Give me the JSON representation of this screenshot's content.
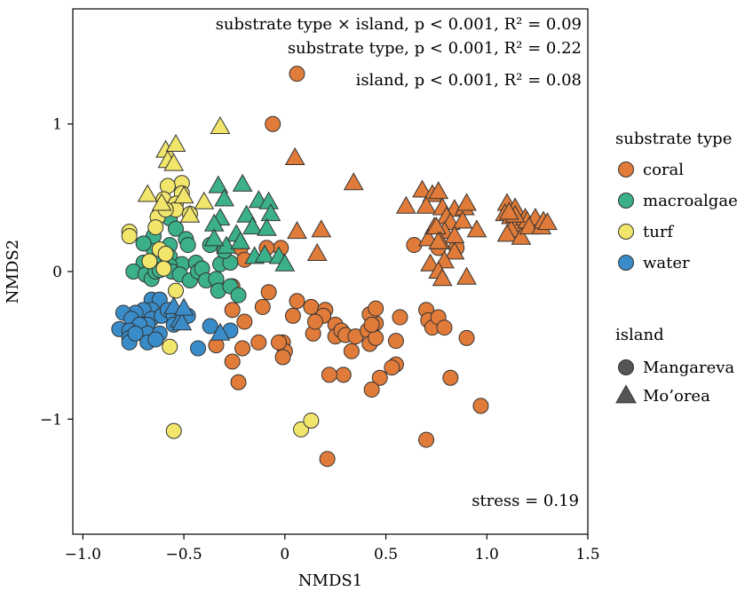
{
  "chart_data": {
    "type": "scatter",
    "title": "",
    "xlabel": "NMDS1",
    "ylabel": "NMDS2",
    "xlim": [
      -1.05,
      1.5
    ],
    "ylim": [
      -1.78,
      1.78
    ],
    "x_ticks": [
      -1.0,
      -0.5,
      0,
      0.5,
      1.0,
      1.5
    ],
    "x_tick_labels": [
      "−1.0",
      "−0.5",
      "0",
      "0.5",
      "1.0",
      "1.5"
    ],
    "y_ticks": [
      1,
      0,
      -1
    ],
    "y_tick_labels": [
      "1",
      "0",
      "−1"
    ],
    "grid": false,
    "annotations": {
      "interaction": "substrate type × island, p < 0.001, R² = 0.09",
      "substrate": "substrate type, p < 0.001, R² = 0.22",
      "island": "island, p < 0.001, R² = 0.08",
      "stress": "stress = 0.19"
    },
    "legend": {
      "placement": "right",
      "substrate_title": "substrate type",
      "island_title": "island",
      "substrate": [
        {
          "label": "coral",
          "color": "#E07B39"
        },
        {
          "label": "macroalgae",
          "color": "#3BB08A"
        },
        {
          "label": "turf",
          "color": "#F2E56B"
        },
        {
          "label": "water",
          "color": "#3A8CC8"
        }
      ],
      "island": [
        {
          "label": "Mangareva",
          "shape": "circle"
        },
        {
          "label": "Mo’orea",
          "shape": "triangle"
        }
      ]
    },
    "series": [
      {
        "substrate": "coral",
        "island": "Mangareva",
        "points": [
          [
            0.06,
            1.34
          ],
          [
            -0.06,
            1.0
          ],
          [
            0.64,
            0.18
          ],
          [
            0.76,
            0.16
          ],
          [
            0.85,
            0.16
          ],
          [
            -0.02,
            0.16
          ],
          [
            -0.09,
            0.16
          ],
          [
            -0.22,
            0.16
          ],
          [
            -0.2,
            0.08
          ],
          [
            -0.26,
            -0.1
          ],
          [
            -0.26,
            -0.26
          ],
          [
            -0.2,
            -0.34
          ],
          [
            -0.11,
            -0.24
          ],
          [
            -0.08,
            -0.14
          ],
          [
            0.06,
            -0.2
          ],
          [
            0.13,
            -0.24
          ],
          [
            0.2,
            -0.26
          ],
          [
            0.19,
            -0.3
          ],
          [
            0.25,
            -0.36
          ],
          [
            0.04,
            -0.3
          ],
          [
            0.14,
            -0.42
          ],
          [
            -0.01,
            -0.48
          ],
          [
            0.0,
            -0.54
          ],
          [
            -0.01,
            -0.58
          ],
          [
            -0.03,
            -0.48
          ],
          [
            -0.13,
            -0.48
          ],
          [
            -0.21,
            -0.52
          ],
          [
            -0.26,
            -0.61
          ],
          [
            -0.34,
            -0.5
          ],
          [
            -0.23,
            -0.75
          ],
          [
            0.25,
            -0.44
          ],
          [
            0.28,
            -0.4
          ],
          [
            0.3,
            -0.43
          ],
          [
            0.35,
            -0.44
          ],
          [
            0.33,
            -0.54
          ],
          [
            0.41,
            -0.4
          ],
          [
            0.42,
            -0.49
          ],
          [
            0.45,
            -0.45
          ],
          [
            0.45,
            -0.35
          ],
          [
            0.42,
            -0.29
          ],
          [
            0.43,
            -0.36
          ],
          [
            0.45,
            -0.25
          ],
          [
            0.57,
            -0.31
          ],
          [
            0.55,
            -0.47
          ],
          [
            0.55,
            -0.63
          ],
          [
            0.53,
            -0.65
          ],
          [
            0.47,
            -0.72
          ],
          [
            0.43,
            -0.8
          ],
          [
            0.29,
            -0.7
          ],
          [
            0.22,
            -0.7
          ],
          [
            0.15,
            -0.34
          ],
          [
            0.7,
            -0.26
          ],
          [
            0.71,
            -0.33
          ],
          [
            0.73,
            -0.38
          ],
          [
            0.76,
            -0.31
          ],
          [
            0.79,
            -0.38
          ],
          [
            0.9,
            -0.45
          ],
          [
            0.82,
            -0.72
          ],
          [
            0.97,
            -0.91
          ],
          [
            0.7,
            -1.14
          ],
          [
            0.21,
            -1.27
          ]
        ]
      },
      {
        "substrate": "coral",
        "island": "Mo'orea",
        "points": [
          [
            0.05,
            0.77
          ],
          [
            0.34,
            0.6
          ],
          [
            0.18,
            0.28
          ],
          [
            0.06,
            0.27
          ],
          [
            0.16,
            0.12
          ],
          [
            0.68,
            0.55
          ],
          [
            0.73,
            0.52
          ],
          [
            0.76,
            0.54
          ],
          [
            0.6,
            0.44
          ],
          [
            0.7,
            0.44
          ],
          [
            0.78,
            0.43
          ],
          [
            0.84,
            0.42
          ],
          [
            0.89,
            0.43
          ],
          [
            0.9,
            0.46
          ],
          [
            0.8,
            0.37
          ],
          [
            0.82,
            0.33
          ],
          [
            0.88,
            0.34
          ],
          [
            0.74,
            0.3
          ],
          [
            0.71,
            0.22
          ],
          [
            0.79,
            0.27
          ],
          [
            0.75,
            0.3
          ],
          [
            0.84,
            0.24
          ],
          [
            0.77,
            0.2
          ],
          [
            0.84,
            0.13
          ],
          [
            0.79,
            0.07
          ],
          [
            0.72,
            0.05
          ],
          [
            0.76,
            0.0
          ],
          [
            0.78,
            -0.05
          ],
          [
            0.9,
            -0.04
          ],
          [
            0.76,
            0.2
          ],
          [
            0.95,
            0.28
          ],
          [
            1.1,
            0.46
          ],
          [
            1.14,
            0.43
          ],
          [
            1.09,
            0.39
          ],
          [
            1.12,
            0.37
          ],
          [
            1.15,
            0.32
          ],
          [
            1.12,
            0.28
          ],
          [
            1.1,
            0.25
          ],
          [
            1.17,
            0.23
          ],
          [
            1.19,
            0.36
          ],
          [
            1.2,
            0.34
          ],
          [
            1.24,
            0.36
          ],
          [
            1.21,
            0.3
          ],
          [
            1.27,
            0.3
          ],
          [
            1.28,
            0.34
          ],
          [
            1.3,
            0.33
          ],
          [
            1.14,
            0.38
          ],
          [
            1.11,
            0.4
          ]
        ]
      },
      {
        "substrate": "macroalgae",
        "island": "Mangareva",
        "points": [
          [
            -0.57,
            0.36
          ],
          [
            -0.54,
            0.29
          ],
          [
            -0.49,
            0.22
          ],
          [
            -0.57,
            0.18
          ],
          [
            -0.48,
            0.18
          ],
          [
            -0.57,
            0.1
          ],
          [
            -0.51,
            0.05
          ],
          [
            -0.57,
            0.04
          ],
          [
            -0.61,
            0.07
          ],
          [
            -0.65,
            0.06
          ],
          [
            -0.65,
            0.15
          ],
          [
            -0.65,
            0.24
          ],
          [
            -0.7,
            0.19
          ],
          [
            -0.7,
            0.06
          ],
          [
            -0.75,
            0.0
          ],
          [
            -0.69,
            -0.02
          ],
          [
            -0.66,
            -0.05
          ],
          [
            -0.64,
            0.0
          ],
          [
            -0.62,
            0.01
          ],
          [
            -0.56,
            0.0
          ],
          [
            -0.52,
            -0.02
          ],
          [
            -0.47,
            -0.06
          ],
          [
            -0.44,
            0.06
          ],
          [
            -0.43,
            0.0
          ],
          [
            -0.41,
            0.02
          ],
          [
            -0.39,
            -0.06
          ],
          [
            -0.34,
            -0.05
          ],
          [
            -0.32,
            0.05
          ],
          [
            -0.27,
            0.06
          ],
          [
            -0.37,
            0.18
          ],
          [
            -0.3,
            0.14
          ],
          [
            -0.33,
            -0.13
          ],
          [
            -0.27,
            -0.1
          ],
          [
            -0.23,
            -0.16
          ]
        ]
      },
      {
        "substrate": "macroalgae",
        "island": "Mo'orea",
        "points": [
          [
            -0.33,
            0.58
          ],
          [
            -0.3,
            0.49
          ],
          [
            -0.21,
            0.59
          ],
          [
            -0.13,
            0.48
          ],
          [
            -0.08,
            0.47
          ],
          [
            -0.07,
            0.39
          ],
          [
            -0.19,
            0.38
          ],
          [
            -0.16,
            0.3
          ],
          [
            -0.24,
            0.25
          ],
          [
            -0.32,
            0.36
          ],
          [
            -0.35,
            0.32
          ],
          [
            -0.29,
            0.17
          ],
          [
            -0.22,
            0.2
          ],
          [
            -0.15,
            0.1
          ],
          [
            -0.1,
            0.11
          ],
          [
            -0.03,
            0.1
          ],
          [
            0.0,
            0.05
          ],
          [
            -0.35,
            0.22
          ],
          [
            -0.09,
            0.29
          ]
        ]
      },
      {
        "substrate": "turf",
        "island": "Mangareva",
        "points": [
          [
            -0.51,
            0.6
          ],
          [
            -0.58,
            0.58
          ],
          [
            -0.51,
            0.53
          ],
          [
            -0.6,
            0.49
          ],
          [
            -0.54,
            0.46
          ],
          [
            -0.63,
            0.37
          ],
          [
            -0.64,
            0.3
          ],
          [
            -0.54,
            0.42
          ],
          [
            -0.59,
            0.42
          ],
          [
            -0.47,
            0.39
          ],
          [
            -0.77,
            0.27
          ],
          [
            -0.77,
            0.24
          ],
          [
            -0.62,
            0.15
          ],
          [
            -0.59,
            0.12
          ],
          [
            -0.6,
            0.02
          ],
          [
            -0.67,
            0.07
          ],
          [
            -0.54,
            -0.13
          ],
          [
            -0.57,
            -0.51
          ],
          [
            -0.55,
            -1.08
          ],
          [
            0.08,
            -1.07
          ],
          [
            0.13,
            -1.01
          ]
        ]
      },
      {
        "substrate": "turf",
        "island": "Mo'orea",
        "points": [
          [
            -0.32,
            0.98
          ],
          [
            -0.59,
            0.82
          ],
          [
            -0.54,
            0.86
          ],
          [
            -0.58,
            0.75
          ],
          [
            -0.55,
            0.73
          ],
          [
            -0.68,
            0.52
          ],
          [
            -0.61,
            0.46
          ],
          [
            -0.5,
            0.51
          ],
          [
            -0.4,
            0.47
          ],
          [
            -0.47,
            0.38
          ]
        ]
      },
      {
        "substrate": "water",
        "island": "Mangareva",
        "points": [
          [
            -0.66,
            -0.19
          ],
          [
            -0.62,
            -0.19
          ],
          [
            -0.66,
            -0.26
          ],
          [
            -0.7,
            -0.26
          ],
          [
            -0.74,
            -0.28
          ],
          [
            -0.8,
            -0.28
          ],
          [
            -0.76,
            -0.32
          ],
          [
            -0.66,
            -0.32
          ],
          [
            -0.61,
            -0.3
          ],
          [
            -0.68,
            -0.36
          ],
          [
            -0.72,
            -0.36
          ],
          [
            -0.82,
            -0.39
          ],
          [
            -0.77,
            -0.4
          ],
          [
            -0.68,
            -0.42
          ],
          [
            -0.62,
            -0.42
          ],
          [
            -0.77,
            -0.45
          ],
          [
            -0.77,
            -0.48
          ],
          [
            -0.68,
            -0.48
          ],
          [
            -0.64,
            -0.46
          ],
          [
            -0.58,
            -0.26
          ],
          [
            -0.55,
            -0.3
          ],
          [
            -0.55,
            -0.36
          ],
          [
            -0.48,
            -0.3
          ],
          [
            -0.37,
            -0.37
          ],
          [
            -0.27,
            -0.4
          ],
          [
            -0.43,
            -0.52
          ],
          [
            -0.74,
            -0.42
          ]
        ]
      },
      {
        "substrate": "water",
        "island": "Mo'orea",
        "points": [
          [
            -0.55,
            -0.24
          ],
          [
            -0.52,
            -0.33
          ],
          [
            -0.51,
            -0.35
          ],
          [
            -0.32,
            -0.42
          ],
          [
            -0.5,
            -0.25
          ]
        ]
      }
    ]
  }
}
